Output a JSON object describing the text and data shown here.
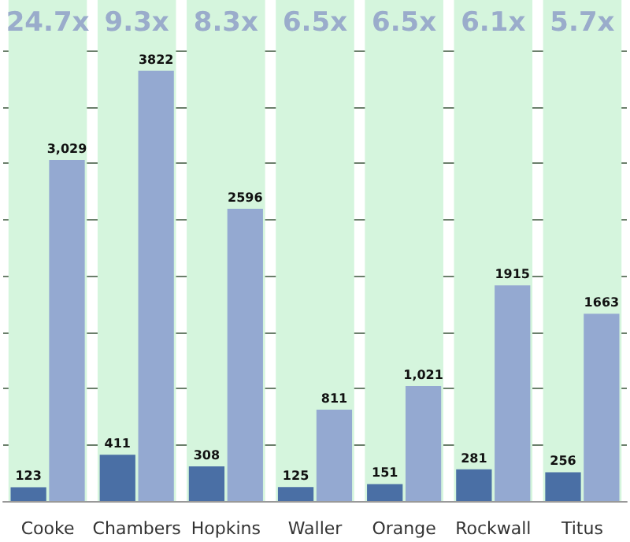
{
  "chart_data": {
    "type": "bar",
    "categories": [
      "Cooke",
      "Chambers",
      "Hopkins",
      "Waller",
      "Orange",
      "Rockwall",
      "Titus"
    ],
    "series": [
      {
        "color": "#4a6fa5",
        "values": [
          123,
          411,
          308,
          125,
          151,
          281,
          256
        ],
        "value_labels": [
          "123",
          "411",
          "308",
          "125",
          "151",
          "281",
          "256"
        ]
      },
      {
        "color": "#94a9d1",
        "values": [
          3029,
          3822,
          2596,
          811,
          1021,
          1915,
          1663
        ],
        "value_labels": [
          "3,029",
          "3822",
          "2596",
          "811",
          "1,021",
          "1915",
          "1663"
        ]
      }
    ],
    "ylim": [
      0,
      4450
    ],
    "yticks": [
      {
        "value": 0,
        "label": null
      },
      {
        "value": 500,
        "label": null
      },
      {
        "value": 1000,
        "label": null
      },
      {
        "value": 1500,
        "label": null
      },
      {
        "value": 2000,
        "label": null
      },
      {
        "value": 2500,
        "label": null
      },
      {
        "value": 3000,
        "label": null
      },
      {
        "value": 3500,
        "label": null
      },
      {
        "value": 4000,
        "label": null
      }
    ],
    "grid": "y",
    "tick_labels": "x",
    "bands": [
      {
        "axis": "x",
        "from": "Cooke",
        "to": "Cooke",
        "label": "24.7x",
        "color": "#d5f5dd"
      },
      {
        "axis": "x",
        "from": "Chambers",
        "to": "Chambers",
        "label": "9.3x",
        "color": "#d5f5dd"
      },
      {
        "axis": "x",
        "from": "Hopkins",
        "to": "Hopkins",
        "label": "8.3x",
        "color": "#d5f5dd"
      },
      {
        "axis": "x",
        "from": "Waller",
        "to": "Waller",
        "label": "6.5x",
        "color": "#d5f5dd"
      },
      {
        "axis": "x",
        "from": "Orange",
        "to": "Orange",
        "label": "6.5x",
        "color": "#d5f5dd"
      },
      {
        "axis": "x",
        "from": "Rockwall",
        "to": "Rockwall",
        "label": "6.1x",
        "color": "#d5f5dd"
      },
      {
        "axis": "x",
        "from": "Titus",
        "to": "Titus",
        "label": "5.7x",
        "color": "#d5f5dd"
      }
    ]
  }
}
